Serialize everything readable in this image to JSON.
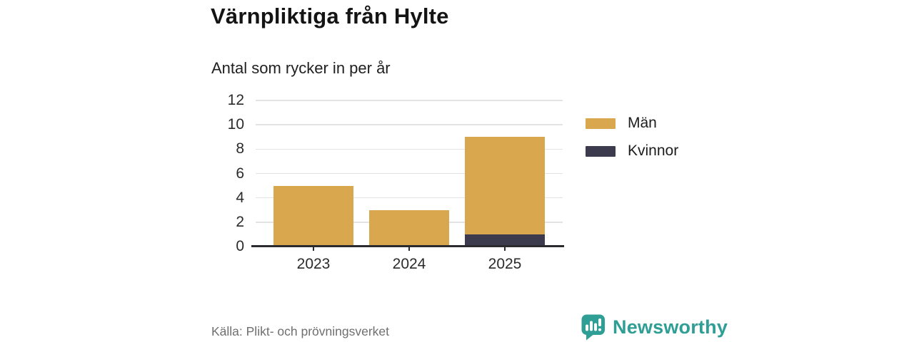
{
  "header": {
    "title": "Värnpliktiga från Hylte",
    "subtitle": "Antal som rycker in per år"
  },
  "chart_data": {
    "type": "bar",
    "stacked": true,
    "title": "Värnpliktiga från Hylte",
    "subtitle": "Antal som rycker in per år",
    "categories": [
      "2023",
      "2024",
      "2025"
    ],
    "series": [
      {
        "name": "Män",
        "color": "#d9a84e",
        "values": [
          5,
          3,
          8
        ]
      },
      {
        "name": "Kvinnor",
        "color": "#3b3b4d",
        "values": [
          0,
          0,
          1
        ]
      }
    ],
    "stack_bottom_to_top": [
      "Kvinnor",
      "Män"
    ],
    "totals": [
      5,
      3,
      9
    ],
    "yticks": [
      0,
      2,
      4,
      6,
      8,
      10,
      12
    ],
    "ylim": [
      0,
      12
    ],
    "xlabel": "",
    "ylabel": "",
    "grid": true,
    "legend_position": "right"
  },
  "footer": {
    "source": "Källa: Plikt- och prövningsverket",
    "brand": "Newsworthy",
    "brand_color": "#2f9e95"
  }
}
